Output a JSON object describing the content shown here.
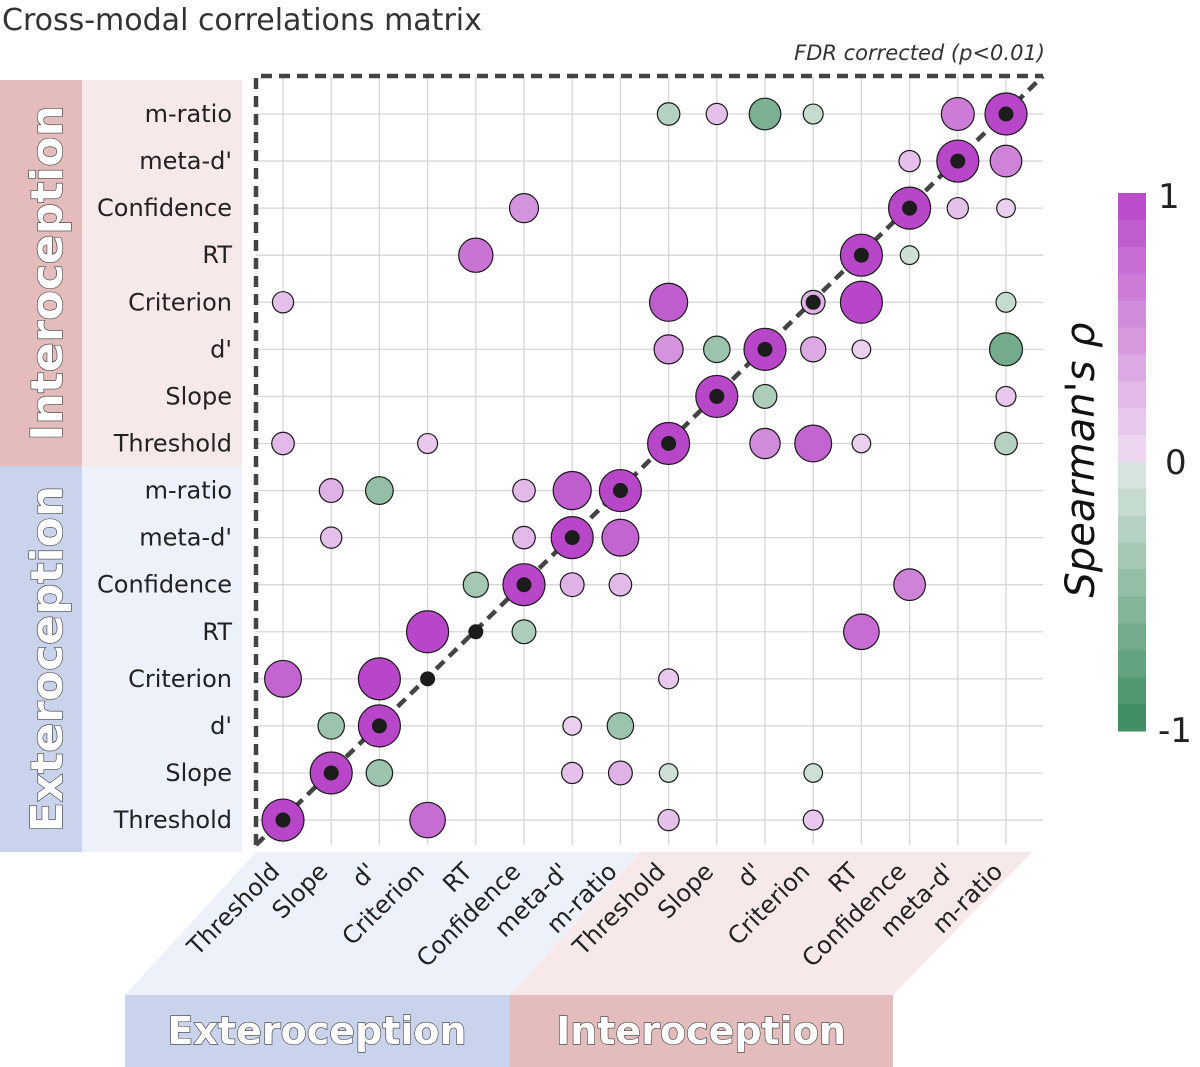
{
  "colors": {
    "positive": "#b846c8",
    "negative": "#3a8a5c",
    "intero_band": "#e4bcbc",
    "intero_light": "#f7e9e9",
    "extero_band": "#c9d4ec",
    "extero_light": "#edf1fa",
    "diagonal": "#444444",
    "grid": "#d6d6d6"
  },
  "chart_data": {
    "type": "bubble-correlation-matrix",
    "title": "Cross-modal correlations matrix",
    "annotation": "FDR corrected (p<0.01)",
    "colorbar": {
      "label": "Spearman's ρ",
      "ticks": [
        "1",
        "0",
        "-1"
      ],
      "range": [
        -1,
        1
      ]
    },
    "group_labels": {
      "intero": "Interoception",
      "extero": "Exteroception"
    },
    "rows": [
      "m-ratio",
      "meta-d'",
      "Confidence",
      "RT",
      "Criterion",
      "d'",
      "Slope",
      "Threshold",
      "m-ratio",
      "meta-d'",
      "Confidence",
      "RT",
      "Criterion",
      "d'",
      "Slope",
      "Threshold"
    ],
    "columns": [
      "Threshold",
      "Slope",
      "d'",
      "Criterion",
      "RT",
      "Confidence",
      "meta-d'",
      "m-ratio",
      "Threshold",
      "Slope",
      "d'",
      "Criterion",
      "RT",
      "Confidence",
      "meta-d'",
      "m-ratio"
    ],
    "cells": [
      [
        0,
        8,
        -0.25
      ],
      [
        0,
        9,
        0.2
      ],
      [
        0,
        10,
        -0.6
      ],
      [
        0,
        11,
        -0.15
      ],
      [
        0,
        14,
        0.65
      ],
      [
        0,
        15,
        1
      ],
      [
        1,
        13,
        0.2
      ],
      [
        1,
        14,
        1
      ],
      [
        1,
        15,
        0.6
      ],
      [
        2,
        5,
        0.5
      ],
      [
        2,
        13,
        1
      ],
      [
        2,
        14,
        0.2
      ],
      [
        2,
        15,
        0.1
      ],
      [
        3,
        4,
        0.7
      ],
      [
        3,
        12,
        1
      ],
      [
        3,
        13,
        -0.1
      ],
      [
        4,
        0,
        0.2
      ],
      [
        4,
        8,
        0.85
      ],
      [
        4,
        11,
        0.3
      ],
      [
        4,
        12,
        1
      ],
      [
        4,
        15,
        -0.15
      ],
      [
        5,
        8,
        0.5
      ],
      [
        5,
        9,
        -0.4
      ],
      [
        5,
        10,
        1
      ],
      [
        5,
        11,
        0.35
      ],
      [
        5,
        12,
        0.1
      ],
      [
        5,
        15,
        -0.65
      ],
      [
        6,
        9,
        1
      ],
      [
        6,
        10,
        -0.3
      ],
      [
        6,
        15,
        0.15
      ],
      [
        7,
        0,
        0.25
      ],
      [
        7,
        3,
        0.15
      ],
      [
        7,
        8,
        1
      ],
      [
        7,
        10,
        0.55
      ],
      [
        7,
        11,
        0.8
      ],
      [
        7,
        12,
        0.1
      ],
      [
        7,
        15,
        -0.25
      ],
      [
        8,
        1,
        0.3
      ],
      [
        8,
        2,
        -0.45
      ],
      [
        8,
        5,
        0.25
      ],
      [
        8,
        6,
        0.85
      ],
      [
        8,
        7,
        1
      ],
      [
        9,
        1,
        0.2
      ],
      [
        9,
        5,
        0.25
      ],
      [
        9,
        6,
        1
      ],
      [
        9,
        7,
        0.8
      ],
      [
        10,
        4,
        -0.35
      ],
      [
        10,
        5,
        1
      ],
      [
        10,
        6,
        0.3
      ],
      [
        10,
        7,
        0.25
      ],
      [
        10,
        13,
        0.6
      ],
      [
        11,
        3,
        1
      ],
      [
        11,
        5,
        -0.3
      ],
      [
        11,
        12,
        0.75
      ],
      [
        12,
        0,
        0.8
      ],
      [
        12,
        2,
        1
      ],
      [
        12,
        8,
        0.15
      ],
      [
        13,
        1,
        -0.4
      ],
      [
        13,
        2,
        1
      ],
      [
        13,
        6,
        0.1
      ],
      [
        13,
        7,
        -0.4
      ],
      [
        14,
        1,
        1
      ],
      [
        14,
        2,
        -0.4
      ],
      [
        14,
        6,
        0.2
      ],
      [
        14,
        7,
        0.3
      ],
      [
        14,
        8,
        -0.1
      ],
      [
        14,
        11,
        -0.1
      ],
      [
        15,
        0,
        1
      ],
      [
        15,
        3,
        0.75
      ],
      [
        15,
        8,
        0.2
      ],
      [
        15,
        11,
        0.15
      ]
    ]
  }
}
